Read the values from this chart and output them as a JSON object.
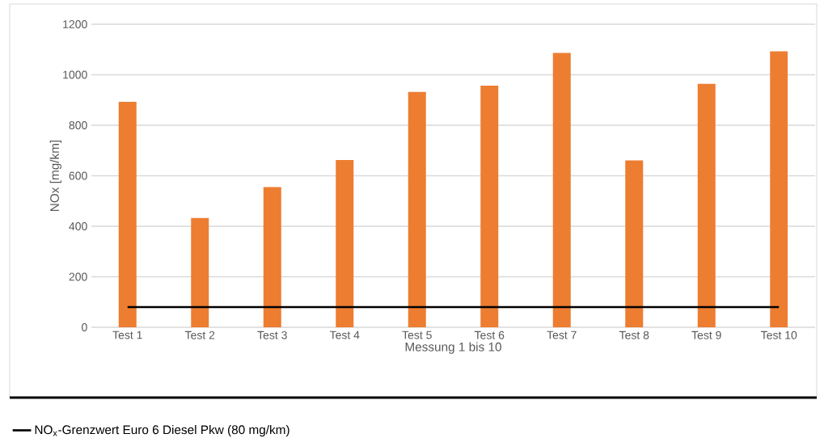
{
  "chart_data": {
    "type": "bar",
    "xlabel": "Messung 1 bis 10",
    "ylabel": "NOx [mg/km]",
    "categories": [
      "Test 1",
      "Test 2",
      "Test 3",
      "Test 4",
      "Test 5",
      "Test 6",
      "Test 7",
      "Test 8",
      "Test 9",
      "Test 10"
    ],
    "values": [
      893,
      433,
      555,
      662,
      932,
      957,
      1086,
      661,
      964,
      1093
    ],
    "color": "#ed7d31",
    "ylim": [
      0,
      1200
    ],
    "yticks": [
      0,
      200,
      400,
      600,
      800,
      1000,
      1200
    ],
    "grid": "y",
    "legend": "bottom",
    "ref_lines": [
      {
        "axis": "y",
        "value": 80,
        "label": "NO$_{x}$-Grenzwert Euro 6 Diesel Pkw (80 mg/km)",
        "color": "#000000"
      }
    ]
  }
}
